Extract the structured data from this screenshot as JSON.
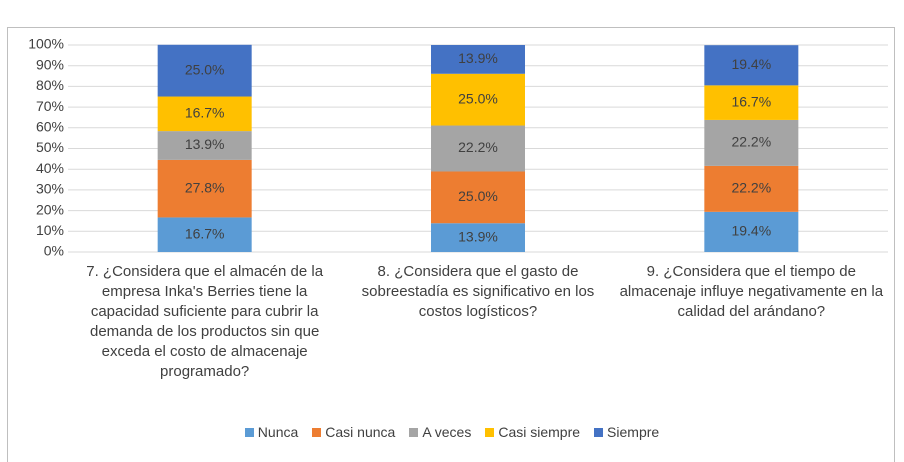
{
  "chart_data": {
    "type": "stacked_bar",
    "categories": [
      "7. ¿Considera que el almacén de la empresa Inka's Berries tiene la capacidad suficiente para cubrir la demanda de los productos sin que exceda el costo de almacenaje programado?",
      "8. ¿Considera que el gasto de sobreestadía es significativo en los costos logísticos?",
      "9. ¿Considera que el tiempo de almacenaje influye negativamente en la calidad del arándano?"
    ],
    "series": [
      {
        "name": "Nunca",
        "color": "#5b9bd5",
        "values": [
          16.7,
          13.9,
          19.4
        ],
        "value_labels": [
          "16.7%",
          "13.9%",
          "19.4%"
        ]
      },
      {
        "name": "Casi nunca",
        "color": "#ed7d31",
        "values": [
          27.8,
          25.0,
          22.2
        ],
        "value_labels": [
          "27.8%",
          "25.0%",
          "22.2%"
        ]
      },
      {
        "name": "A veces",
        "color": "#a5a5a5",
        "values": [
          13.9,
          22.2,
          22.2
        ],
        "value_labels": [
          "13.9%",
          "22.2%",
          "22.2%"
        ]
      },
      {
        "name": "Casi siempre",
        "color": "#ffc000",
        "values": [
          16.7,
          25.0,
          16.7
        ],
        "value_labels": [
          "16.7%",
          "25.0%",
          "16.7%"
        ]
      },
      {
        "name": "Siempre",
        "color": "#4472c4",
        "values": [
          25.0,
          13.9,
          19.4
        ],
        "value_labels": [
          "25.0%",
          "13.9%",
          "19.4%"
        ]
      }
    ],
    "ylim": [
      0,
      100
    ],
    "yticks": [
      {
        "value": 0,
        "label": "0%"
      },
      {
        "value": 10,
        "label": "10%"
      },
      {
        "value": 20,
        "label": "20%"
      },
      {
        "value": 30,
        "label": "30%"
      },
      {
        "value": 40,
        "label": "40%"
      },
      {
        "value": 50,
        "label": "50%"
      },
      {
        "value": 60,
        "label": "60%"
      },
      {
        "value": 70,
        "label": "70%"
      },
      {
        "value": 80,
        "label": "80%"
      },
      {
        "value": 90,
        "label": "90%"
      },
      {
        "value": 100,
        "label": "100%"
      }
    ],
    "grid": true,
    "legend": "bottom"
  }
}
